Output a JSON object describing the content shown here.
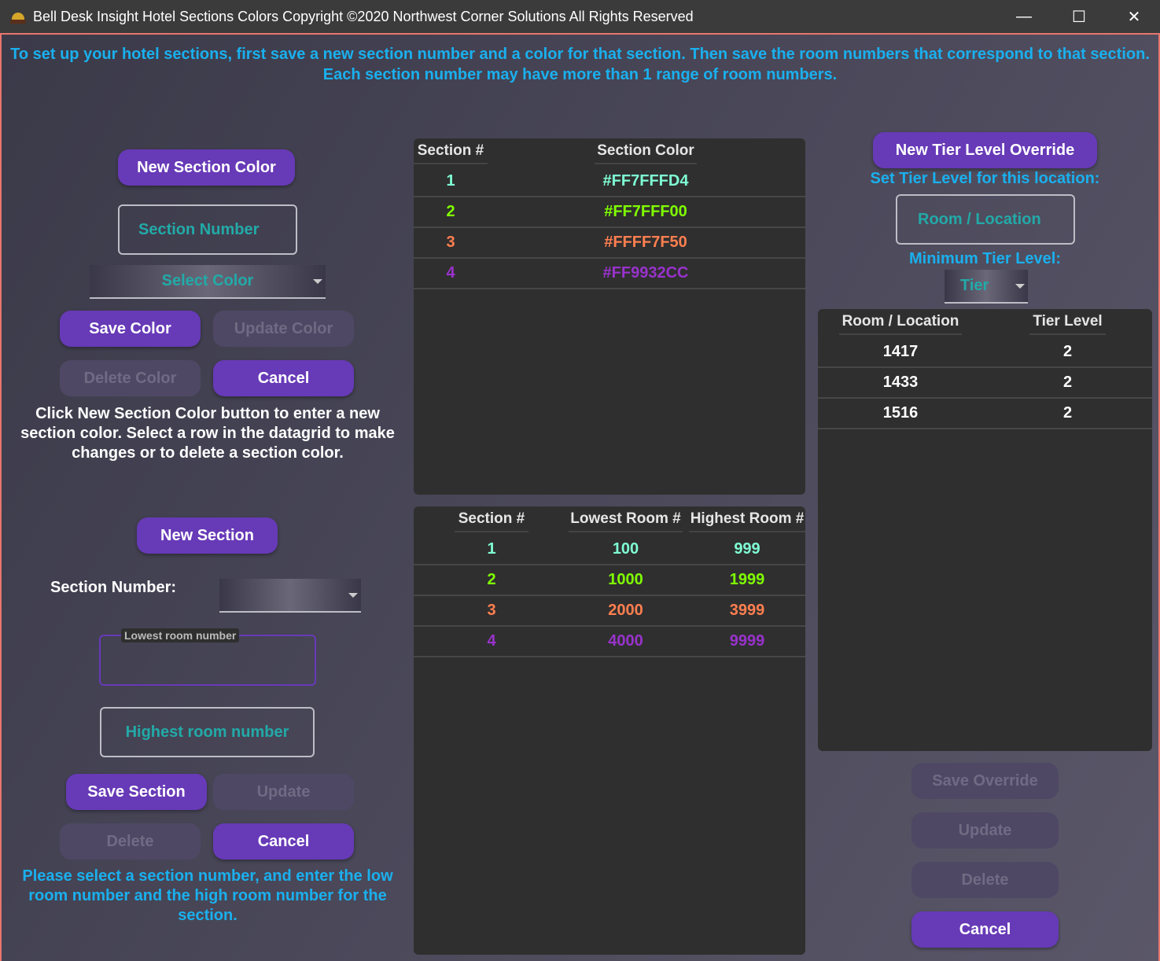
{
  "window": {
    "title": "Bell Desk Insight Hotel Sections Colors Copyright ©2020 Northwest Corner Solutions All Rights Reserved",
    "minimize": "—",
    "maximize": "☐",
    "close": "✕"
  },
  "instructions": {
    "line1": "To set up your hotel sections, first save a new section number and a color for that section. Then save the room numbers that correspond to that section.",
    "line2": "Each section number may have more than 1 range of room numbers."
  },
  "colors_panel": {
    "new_button": "New Section Color",
    "section_number_placeholder": "Section Number",
    "select_color_placeholder": "Select Color",
    "save": "Save Color",
    "update": "Update Color",
    "delete": "Delete Color",
    "cancel": "Cancel",
    "help": "Click New Section Color button to enter a new section color. Select a row in the datagrid to make changes or to delete a section color."
  },
  "sections_panel": {
    "new_button": "New Section",
    "section_number_label": "Section Number:",
    "section_number_value": "",
    "lowest_label": "Lowest room number",
    "lowest_value": "",
    "highest_placeholder": "Highest room number",
    "save": "Save Section",
    "update": "Update",
    "delete": "Delete",
    "cancel": "Cancel",
    "help": "Please select a section number, and enter the low room number and the high room number for the section."
  },
  "color_grid": {
    "headers": [
      "Section #",
      "Section Color"
    ],
    "rows": [
      {
        "section": "1",
        "color": "#FF7FFFD4",
        "display": "#7fffd4"
      },
      {
        "section": "2",
        "color": "#FF7FFF00",
        "display": "#7fff00"
      },
      {
        "section": "3",
        "color": "#FFFF7F50",
        "display": "#ff7f50"
      },
      {
        "section": "4",
        "color": "#FF9932CC",
        "display": "#9932cc"
      }
    ]
  },
  "range_grid": {
    "headers": [
      "Section #",
      "Lowest Room #",
      "Highest Room #"
    ],
    "rows": [
      {
        "section": "1",
        "low": "100",
        "high": "999",
        "display": "#7fffd4"
      },
      {
        "section": "2",
        "low": "1000",
        "high": "1999",
        "display": "#7fff00"
      },
      {
        "section": "3",
        "low": "2000",
        "high": "3999",
        "display": "#ff7f50"
      },
      {
        "section": "4",
        "low": "4000",
        "high": "9999",
        "display": "#9932cc"
      }
    ]
  },
  "tier_panel": {
    "new_button": "New Tier Level Override",
    "set_label": "Set Tier Level for this location:",
    "room_placeholder": "Room / Location",
    "min_label": "Minimum Tier Level:",
    "tier_placeholder": "Tier",
    "save": "Save Override",
    "update": "Update",
    "delete": "Delete",
    "cancel": "Cancel"
  },
  "tier_grid": {
    "headers": [
      "Room / Location",
      "Tier Level"
    ],
    "rows": [
      {
        "room": "1417",
        "tier": "2"
      },
      {
        "room": "1433",
        "tier": "2"
      },
      {
        "room": "1516",
        "tier": "2"
      }
    ]
  }
}
